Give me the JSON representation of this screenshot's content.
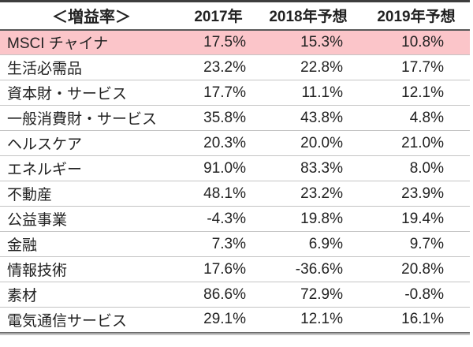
{
  "chart_data": {
    "type": "table",
    "title": "＜増益率＞",
    "columns": [
      "2017年",
      "2018年予想",
      "2019年予想"
    ],
    "rows": [
      {
        "label": "MSCI チャイナ",
        "values": [
          "17.5%",
          "15.3%",
          "10.8%"
        ],
        "highlight": true
      },
      {
        "label": "生活必需品",
        "values": [
          "23.2%",
          "22.8%",
          "17.7%"
        ],
        "highlight": false
      },
      {
        "label": "資本財・サービス",
        "values": [
          "17.7%",
          "11.1%",
          "12.1%"
        ],
        "highlight": false
      },
      {
        "label": "一般消費財・サービス",
        "values": [
          "35.8%",
          "43.8%",
          "4.8%"
        ],
        "highlight": false
      },
      {
        "label": "ヘルスケア",
        "values": [
          "20.3%",
          "20.0%",
          "21.0%"
        ],
        "highlight": false
      },
      {
        "label": "エネルギー",
        "values": [
          "91.0%",
          "83.3%",
          "8.0%"
        ],
        "highlight": false
      },
      {
        "label": "不動産",
        "values": [
          "48.1%",
          "23.2%",
          "23.9%"
        ],
        "highlight": false
      },
      {
        "label": "公益事業",
        "values": [
          "-4.3%",
          "19.8%",
          "19.4%"
        ],
        "highlight": false
      },
      {
        "label": "金融",
        "values": [
          "7.3%",
          "6.9%",
          "9.7%"
        ],
        "highlight": false
      },
      {
        "label": "情報技術",
        "values": [
          "17.6%",
          "-36.6%",
          "20.8%"
        ],
        "highlight": false
      },
      {
        "label": "素材",
        "values": [
          "86.6%",
          "72.9%",
          "-0.8%"
        ],
        "highlight": false
      },
      {
        "label": "電気通信サービス",
        "values": [
          "29.1%",
          "12.1%",
          "16.1%"
        ],
        "highlight": false
      }
    ],
    "layout_hints": {
      "highlight_row_index": 0,
      "value_alignment": "right",
      "header_alignment": "center"
    }
  },
  "colors": {
    "text": "#222222",
    "highlight_row_bg": "#fbc5c9",
    "top_border": "#3d3d3d",
    "header_separator": "#595959",
    "row_separator": "#c4c4c4",
    "bottom_border_thick": "#6e6e6e",
    "bottom_border_thin": "#a8a8a8",
    "background": "#ffffff"
  }
}
